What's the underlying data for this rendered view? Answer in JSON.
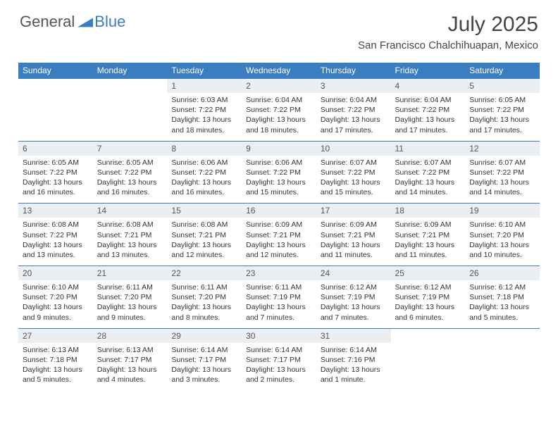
{
  "logo": {
    "part1": "General",
    "part2": "Blue"
  },
  "title": {
    "month": "July 2025",
    "location": "San Francisco Chalchihuapan, Mexico"
  },
  "colors": {
    "header_bg": "#3a7ec1",
    "numrow_bg": "#eceff1",
    "border": "#3a7ec1"
  },
  "day_names": [
    "Sunday",
    "Monday",
    "Tuesday",
    "Wednesday",
    "Thursday",
    "Friday",
    "Saturday"
  ],
  "weeks": [
    {
      "nums": [
        "",
        "",
        "1",
        "2",
        "3",
        "4",
        "5"
      ],
      "cells": [
        null,
        null,
        {
          "sunrise": "Sunrise: 6:03 AM",
          "sunset": "Sunset: 7:22 PM",
          "day1": "Daylight: 13 hours",
          "day2": "and 18 minutes."
        },
        {
          "sunrise": "Sunrise: 6:04 AM",
          "sunset": "Sunset: 7:22 PM",
          "day1": "Daylight: 13 hours",
          "day2": "and 18 minutes."
        },
        {
          "sunrise": "Sunrise: 6:04 AM",
          "sunset": "Sunset: 7:22 PM",
          "day1": "Daylight: 13 hours",
          "day2": "and 17 minutes."
        },
        {
          "sunrise": "Sunrise: 6:04 AM",
          "sunset": "Sunset: 7:22 PM",
          "day1": "Daylight: 13 hours",
          "day2": "and 17 minutes."
        },
        {
          "sunrise": "Sunrise: 6:05 AM",
          "sunset": "Sunset: 7:22 PM",
          "day1": "Daylight: 13 hours",
          "day2": "and 17 minutes."
        }
      ]
    },
    {
      "nums": [
        "6",
        "7",
        "8",
        "9",
        "10",
        "11",
        "12"
      ],
      "cells": [
        {
          "sunrise": "Sunrise: 6:05 AM",
          "sunset": "Sunset: 7:22 PM",
          "day1": "Daylight: 13 hours",
          "day2": "and 16 minutes."
        },
        {
          "sunrise": "Sunrise: 6:05 AM",
          "sunset": "Sunset: 7:22 PM",
          "day1": "Daylight: 13 hours",
          "day2": "and 16 minutes."
        },
        {
          "sunrise": "Sunrise: 6:06 AM",
          "sunset": "Sunset: 7:22 PM",
          "day1": "Daylight: 13 hours",
          "day2": "and 16 minutes."
        },
        {
          "sunrise": "Sunrise: 6:06 AM",
          "sunset": "Sunset: 7:22 PM",
          "day1": "Daylight: 13 hours",
          "day2": "and 15 minutes."
        },
        {
          "sunrise": "Sunrise: 6:07 AM",
          "sunset": "Sunset: 7:22 PM",
          "day1": "Daylight: 13 hours",
          "day2": "and 15 minutes."
        },
        {
          "sunrise": "Sunrise: 6:07 AM",
          "sunset": "Sunset: 7:22 PM",
          "day1": "Daylight: 13 hours",
          "day2": "and 14 minutes."
        },
        {
          "sunrise": "Sunrise: 6:07 AM",
          "sunset": "Sunset: 7:22 PM",
          "day1": "Daylight: 13 hours",
          "day2": "and 14 minutes."
        }
      ]
    },
    {
      "nums": [
        "13",
        "14",
        "15",
        "16",
        "17",
        "18",
        "19"
      ],
      "cells": [
        {
          "sunrise": "Sunrise: 6:08 AM",
          "sunset": "Sunset: 7:22 PM",
          "day1": "Daylight: 13 hours",
          "day2": "and 13 minutes."
        },
        {
          "sunrise": "Sunrise: 6:08 AM",
          "sunset": "Sunset: 7:21 PM",
          "day1": "Daylight: 13 hours",
          "day2": "and 13 minutes."
        },
        {
          "sunrise": "Sunrise: 6:08 AM",
          "sunset": "Sunset: 7:21 PM",
          "day1": "Daylight: 13 hours",
          "day2": "and 12 minutes."
        },
        {
          "sunrise": "Sunrise: 6:09 AM",
          "sunset": "Sunset: 7:21 PM",
          "day1": "Daylight: 13 hours",
          "day2": "and 12 minutes."
        },
        {
          "sunrise": "Sunrise: 6:09 AM",
          "sunset": "Sunset: 7:21 PM",
          "day1": "Daylight: 13 hours",
          "day2": "and 11 minutes."
        },
        {
          "sunrise": "Sunrise: 6:09 AM",
          "sunset": "Sunset: 7:21 PM",
          "day1": "Daylight: 13 hours",
          "day2": "and 11 minutes."
        },
        {
          "sunrise": "Sunrise: 6:10 AM",
          "sunset": "Sunset: 7:20 PM",
          "day1": "Daylight: 13 hours",
          "day2": "and 10 minutes."
        }
      ]
    },
    {
      "nums": [
        "20",
        "21",
        "22",
        "23",
        "24",
        "25",
        "26"
      ],
      "cells": [
        {
          "sunrise": "Sunrise: 6:10 AM",
          "sunset": "Sunset: 7:20 PM",
          "day1": "Daylight: 13 hours",
          "day2": "and 9 minutes."
        },
        {
          "sunrise": "Sunrise: 6:11 AM",
          "sunset": "Sunset: 7:20 PM",
          "day1": "Daylight: 13 hours",
          "day2": "and 9 minutes."
        },
        {
          "sunrise": "Sunrise: 6:11 AM",
          "sunset": "Sunset: 7:20 PM",
          "day1": "Daylight: 13 hours",
          "day2": "and 8 minutes."
        },
        {
          "sunrise": "Sunrise: 6:11 AM",
          "sunset": "Sunset: 7:19 PM",
          "day1": "Daylight: 13 hours",
          "day2": "and 7 minutes."
        },
        {
          "sunrise": "Sunrise: 6:12 AM",
          "sunset": "Sunset: 7:19 PM",
          "day1": "Daylight: 13 hours",
          "day2": "and 7 minutes."
        },
        {
          "sunrise": "Sunrise: 6:12 AM",
          "sunset": "Sunset: 7:19 PM",
          "day1": "Daylight: 13 hours",
          "day2": "and 6 minutes."
        },
        {
          "sunrise": "Sunrise: 6:12 AM",
          "sunset": "Sunset: 7:18 PM",
          "day1": "Daylight: 13 hours",
          "day2": "and 5 minutes."
        }
      ]
    },
    {
      "nums": [
        "27",
        "28",
        "29",
        "30",
        "31",
        "",
        ""
      ],
      "cells": [
        {
          "sunrise": "Sunrise: 6:13 AM",
          "sunset": "Sunset: 7:18 PM",
          "day1": "Daylight: 13 hours",
          "day2": "and 5 minutes."
        },
        {
          "sunrise": "Sunrise: 6:13 AM",
          "sunset": "Sunset: 7:17 PM",
          "day1": "Daylight: 13 hours",
          "day2": "and 4 minutes."
        },
        {
          "sunrise": "Sunrise: 6:14 AM",
          "sunset": "Sunset: 7:17 PM",
          "day1": "Daylight: 13 hours",
          "day2": "and 3 minutes."
        },
        {
          "sunrise": "Sunrise: 6:14 AM",
          "sunset": "Sunset: 7:17 PM",
          "day1": "Daylight: 13 hours",
          "day2": "and 2 minutes."
        },
        {
          "sunrise": "Sunrise: 6:14 AM",
          "sunset": "Sunset: 7:16 PM",
          "day1": "Daylight: 13 hours",
          "day2": "and 1 minute."
        },
        null,
        null
      ]
    }
  ]
}
